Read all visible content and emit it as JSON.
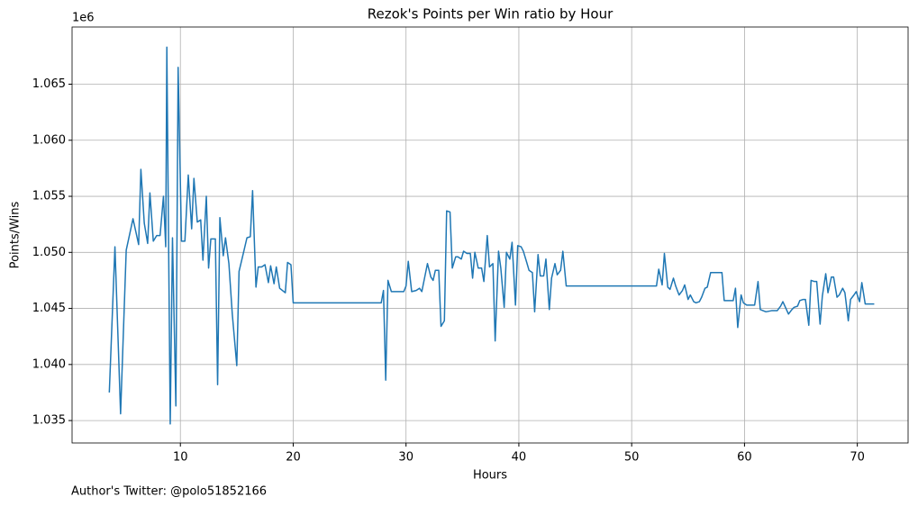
{
  "chart_data": {
    "type": "line",
    "title": "Rezok's Points per Win ratio by Hour",
    "xlabel": "Hours",
    "ylabel": "Points/Wins",
    "y_offset_label": "1e6",
    "annotation": "Author's Twitter: @polo51852166",
    "color": "#1f77b4",
    "grid": true,
    "xlim": [
      0.4,
      74.5
    ],
    "ylim": [
      1.033,
      1.0701
    ],
    "xticks": [
      10,
      20,
      30,
      40,
      50,
      60,
      70
    ],
    "yticks": [
      1.035,
      {
        "value": 1.04,
        "label": "1.040"
      },
      1.045,
      {
        "value": 1.05,
        "label": "1.050"
      },
      1.055,
      {
        "value": 1.06,
        "label": "1.060"
      },
      1.065
    ],
    "x": [
      3.7,
      4.2,
      4.7,
      5.2,
      5.8,
      6.3,
      6.5,
      6.8,
      7.1,
      7.3,
      7.6,
      7.9,
      8.2,
      8.5,
      8.7,
      8.8,
      9.1,
      9.3,
      9.6,
      9.8,
      10.1,
      10.4,
      10.7,
      11.0,
      11.2,
      11.5,
      11.8,
      12.0,
      12.3,
      12.5,
      12.7,
      13.1,
      13.3,
      13.5,
      13.8,
      14.0,
      14.3,
      14.6,
      15.0,
      15.2,
      15.6,
      15.9,
      16.2,
      16.4,
      16.7,
      16.9,
      17.2,
      17.5,
      17.8,
      18.0,
      18.3,
      18.5,
      18.8,
      19.3,
      19.5,
      19.8,
      20.0,
      27.8,
      28.0,
      28.2,
      28.4,
      28.7,
      29.8,
      30.0,
      30.2,
      30.5,
      30.9,
      31.2,
      31.4,
      31.9,
      32.2,
      32.4,
      32.6,
      32.9,
      33.1,
      33.4,
      33.6,
      33.9,
      34.1,
      34.4,
      34.6,
      34.9,
      35.1,
      35.4,
      35.7,
      35.9,
      36.1,
      36.4,
      36.7,
      36.9,
      37.2,
      37.4,
      37.7,
      37.9,
      38.2,
      38.4,
      38.7,
      38.9,
      39.2,
      39.4,
      39.7,
      39.9,
      40.2,
      40.4,
      40.7,
      40.9,
      41.2,
      41.4,
      41.7,
      41.9,
      42.2,
      42.4,
      42.7,
      42.9,
      43.2,
      43.4,
      43.7,
      43.9,
      44.2,
      52.2,
      52.4,
      52.7,
      52.9,
      53.2,
      53.4,
      53.7,
      53.9,
      54.2,
      54.5,
      54.7,
      55.0,
      55.2,
      55.5,
      55.7,
      56.0,
      56.2,
      56.5,
      56.7,
      57.0,
      58.0,
      58.2,
      59.0,
      59.2,
      59.4,
      59.7,
      59.9,
      60.2,
      60.9,
      61.2,
      61.4,
      61.9,
      62.4,
      62.9,
      63.2,
      63.4,
      63.9,
      64.2,
      64.4,
      64.7,
      64.9,
      65.2,
      65.4,
      65.7,
      65.9,
      66.2,
      66.4,
      66.7,
      66.9,
      67.2,
      67.4,
      67.7,
      67.9,
      68.2,
      68.4,
      68.7,
      68.9,
      69.2,
      69.4,
      69.7,
      69.9,
      70.2,
      70.4,
      70.7,
      71.2,
      71.5
    ],
    "values": [
      1.0375,
      1.0505,
      1.0356,
      1.0502,
      1.053,
      1.0507,
      1.0574,
      1.0526,
      1.0508,
      1.0553,
      1.051,
      1.0515,
      1.0515,
      1.055,
      1.0505,
      1.0683,
      1.0347,
      1.0513,
      1.0363,
      1.0665,
      1.051,
      1.051,
      1.0569,
      1.0521,
      1.0566,
      1.0527,
      1.0529,
      1.0493,
      1.055,
      1.0486,
      1.0512,
      1.0512,
      1.0382,
      1.0531,
      1.0497,
      1.0513,
      1.049,
      1.0445,
      1.0399,
      1.0483,
      1.05,
      1.0513,
      1.0514,
      1.0555,
      1.0469,
      1.0487,
      1.0487,
      1.0489,
      1.0473,
      1.0488,
      1.0472,
      1.0487,
      1.0468,
      1.0464,
      1.0491,
      1.0489,
      1.0455,
      1.0455,
      1.0466,
      1.0386,
      1.0475,
      1.0465,
      1.0465,
      1.047,
      1.0492,
      1.0465,
      1.0466,
      1.0468,
      1.0465,
      1.049,
      1.0478,
      1.0475,
      1.0484,
      1.0484,
      1.0434,
      1.0439,
      1.0537,
      1.0536,
      1.0486,
      1.0496,
      1.0496,
      1.0494,
      1.0501,
      1.0499,
      1.0499,
      1.0477,
      1.05,
      1.0486,
      1.0486,
      1.0474,
      1.0515,
      1.0487,
      1.049,
      1.0421,
      1.0501,
      1.0486,
      1.0451,
      1.05,
      1.0494,
      1.0509,
      1.0453,
      1.0506,
      1.0505,
      1.0501,
      1.0491,
      1.0484,
      1.0482,
      1.0447,
      1.0498,
      1.0479,
      1.0479,
      1.0494,
      1.0449,
      1.0477,
      1.049,
      1.048,
      1.0484,
      1.0501,
      1.047,
      1.047,
      1.0485,
      1.0471,
      1.0499,
      1.0469,
      1.0467,
      1.0477,
      1.047,
      1.0462,
      1.0466,
      1.0471,
      1.0458,
      1.0462,
      1.0456,
      1.0455,
      1.0456,
      1.046,
      1.0468,
      1.0469,
      1.0482,
      1.0482,
      1.0457,
      1.0457,
      1.0468,
      1.0433,
      1.0462,
      1.0455,
      1.0453,
      1.0453,
      1.0474,
      1.0449,
      1.0447,
      1.0448,
      1.0448,
      1.0452,
      1.0456,
      1.0445,
      1.0449,
      1.0451,
      1.0452,
      1.0457,
      1.0458,
      1.0458,
      1.0435,
      1.0475,
      1.0474,
      1.0474,
      1.0436,
      1.0461,
      1.0481,
      1.0464,
      1.0478,
      1.0478,
      1.046,
      1.0462,
      1.0468,
      1.0464,
      1.0439,
      1.0458,
      1.0462,
      1.0465,
      1.0456,
      1.0473,
      1.0454,
      1.0454,
      1.0454
    ]
  }
}
